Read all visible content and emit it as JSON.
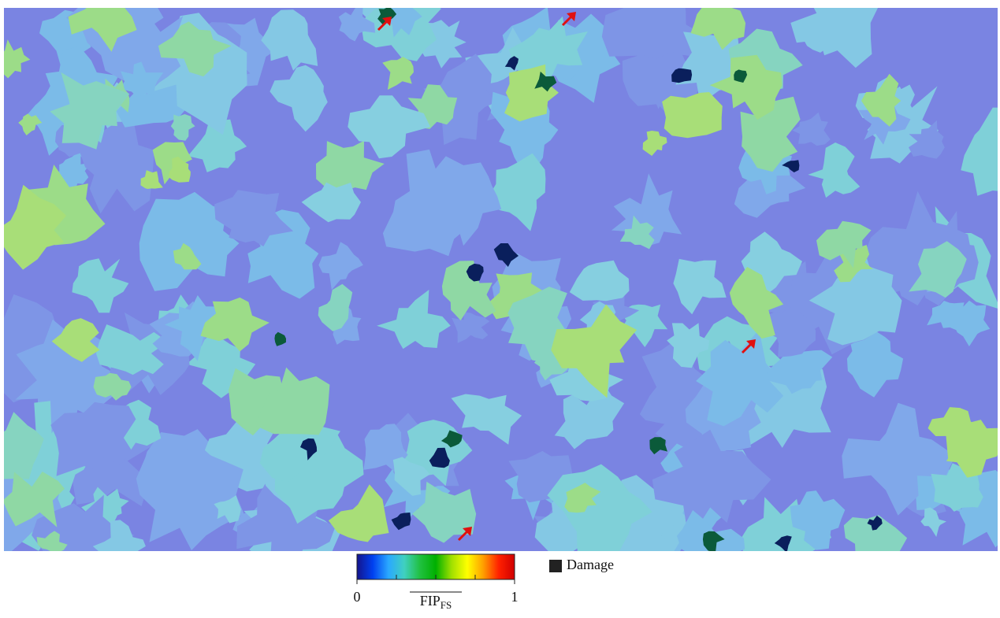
{
  "colorbar": {
    "label": "FIP",
    "label_sub": "FS",
    "lim": [
      0,
      1
    ],
    "ticks": [
      0,
      1
    ],
    "colors": [
      "#14148c",
      "#0040f0",
      "#2aa8ff",
      "#40d0c0",
      "#20c040",
      "#00b000",
      "#a0e000",
      "#ffff00",
      "#ffa000",
      "#ff2000",
      "#d00000"
    ]
  },
  "legend": {
    "label": "Damage",
    "color": "#222222"
  }
}
